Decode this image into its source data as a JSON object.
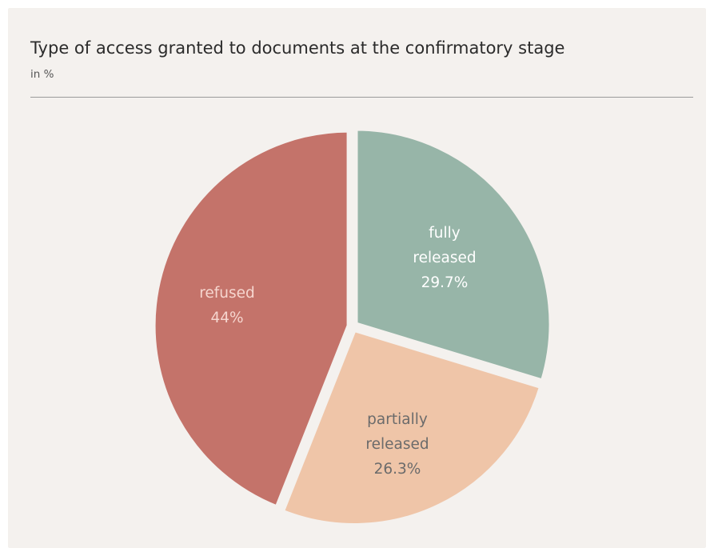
{
  "chart_data": {
    "type": "pie",
    "title": "Type of access granted to documents at the confirmatory stage",
    "subtitle": "in %",
    "slices": [
      {
        "lines": [
          "fully",
          "released",
          "29.7%"
        ],
        "value": 29.7,
        "color": "#97b5a8",
        "label_color": "#ffffff"
      },
      {
        "lines": [
          "partially",
          "released",
          "26.3%"
        ],
        "value": 26.3,
        "color": "#efc5a8",
        "label_color": "#6b6b6b"
      },
      {
        "lines": [
          "refused",
          "44%"
        ],
        "value": 44,
        "color": "#c4736a",
        "label_color": "#f6d6cf"
      }
    ]
  }
}
